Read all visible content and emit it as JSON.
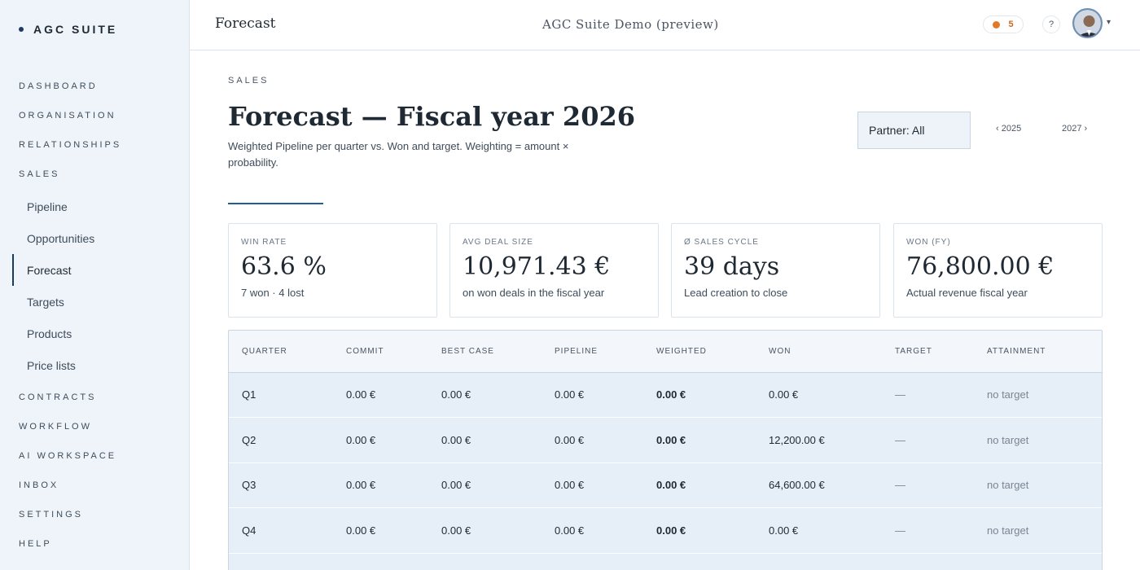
{
  "brand": {
    "name": "AGC SUITE"
  },
  "sidebar": {
    "items": [
      {
        "label": "DASHBOARD"
      },
      {
        "label": "ORGANISATION"
      },
      {
        "label": "RELATIONSHIPS"
      },
      {
        "label": "SALES"
      }
    ],
    "sales_items": [
      {
        "label": "Pipeline"
      },
      {
        "label": "Opportunities"
      },
      {
        "label": "Forecast",
        "active": true
      },
      {
        "label": "Targets"
      },
      {
        "label": "Products"
      },
      {
        "label": "Price lists"
      }
    ],
    "items_after": [
      {
        "label": "CONTRACTS"
      },
      {
        "label": "WORKFLOW"
      },
      {
        "label": "AI WORKSPACE"
      },
      {
        "label": "INBOX"
      },
      {
        "label": "SETTINGS"
      },
      {
        "label": "HELP"
      }
    ]
  },
  "topbar": {
    "title": "Forecast",
    "center": "AGC Suite Demo (preview)",
    "notification_count": "5",
    "help_label": "?",
    "caret": "▾"
  },
  "header": {
    "eyebrow": "SALES",
    "title": "Forecast — Fiscal year 2026",
    "subtitle": "Weighted Pipeline per quarter vs. Won and target. Weighting = amount × probability.",
    "partner_filter": "Partner: All",
    "prev_year": "‹ 2025",
    "next_year": "2027 ›"
  },
  "cards": [
    {
      "label": "WIN RATE",
      "value": "63.6 %",
      "sub": "7 won · 4 lost"
    },
    {
      "label": "AVG DEAL SIZE",
      "value": "10,971.43 €",
      "sub": "on won deals in the fiscal year"
    },
    {
      "label": "Ø SALES CYCLE",
      "value": "39 days",
      "sub": "Lead creation to close"
    },
    {
      "label": "WON (FY)",
      "value": "76,800.00 €",
      "sub": "Actual revenue fiscal year"
    }
  ],
  "table": {
    "headers": [
      "QUARTER",
      "COMMIT",
      "BEST CASE",
      "PIPELINE",
      "WEIGHTED",
      "WON",
      "TARGET",
      "ATTAINMENT"
    ],
    "rows": [
      [
        "Q1",
        "0.00 €",
        "0.00 €",
        "0.00 €",
        "0.00 €",
        "0.00 €",
        "—",
        "no target"
      ],
      [
        "Q2",
        "0.00 €",
        "0.00 €",
        "0.00 €",
        "0.00 €",
        "12,200.00 €",
        "—",
        "no target"
      ],
      [
        "Q3",
        "0.00 €",
        "0.00 €",
        "0.00 €",
        "0.00 €",
        "64,600.00 €",
        "—",
        "no target"
      ],
      [
        "Q4",
        "0.00 €",
        "0.00 €",
        "0.00 €",
        "0.00 €",
        "0.00 €",
        "—",
        "no target"
      ]
    ]
  }
}
